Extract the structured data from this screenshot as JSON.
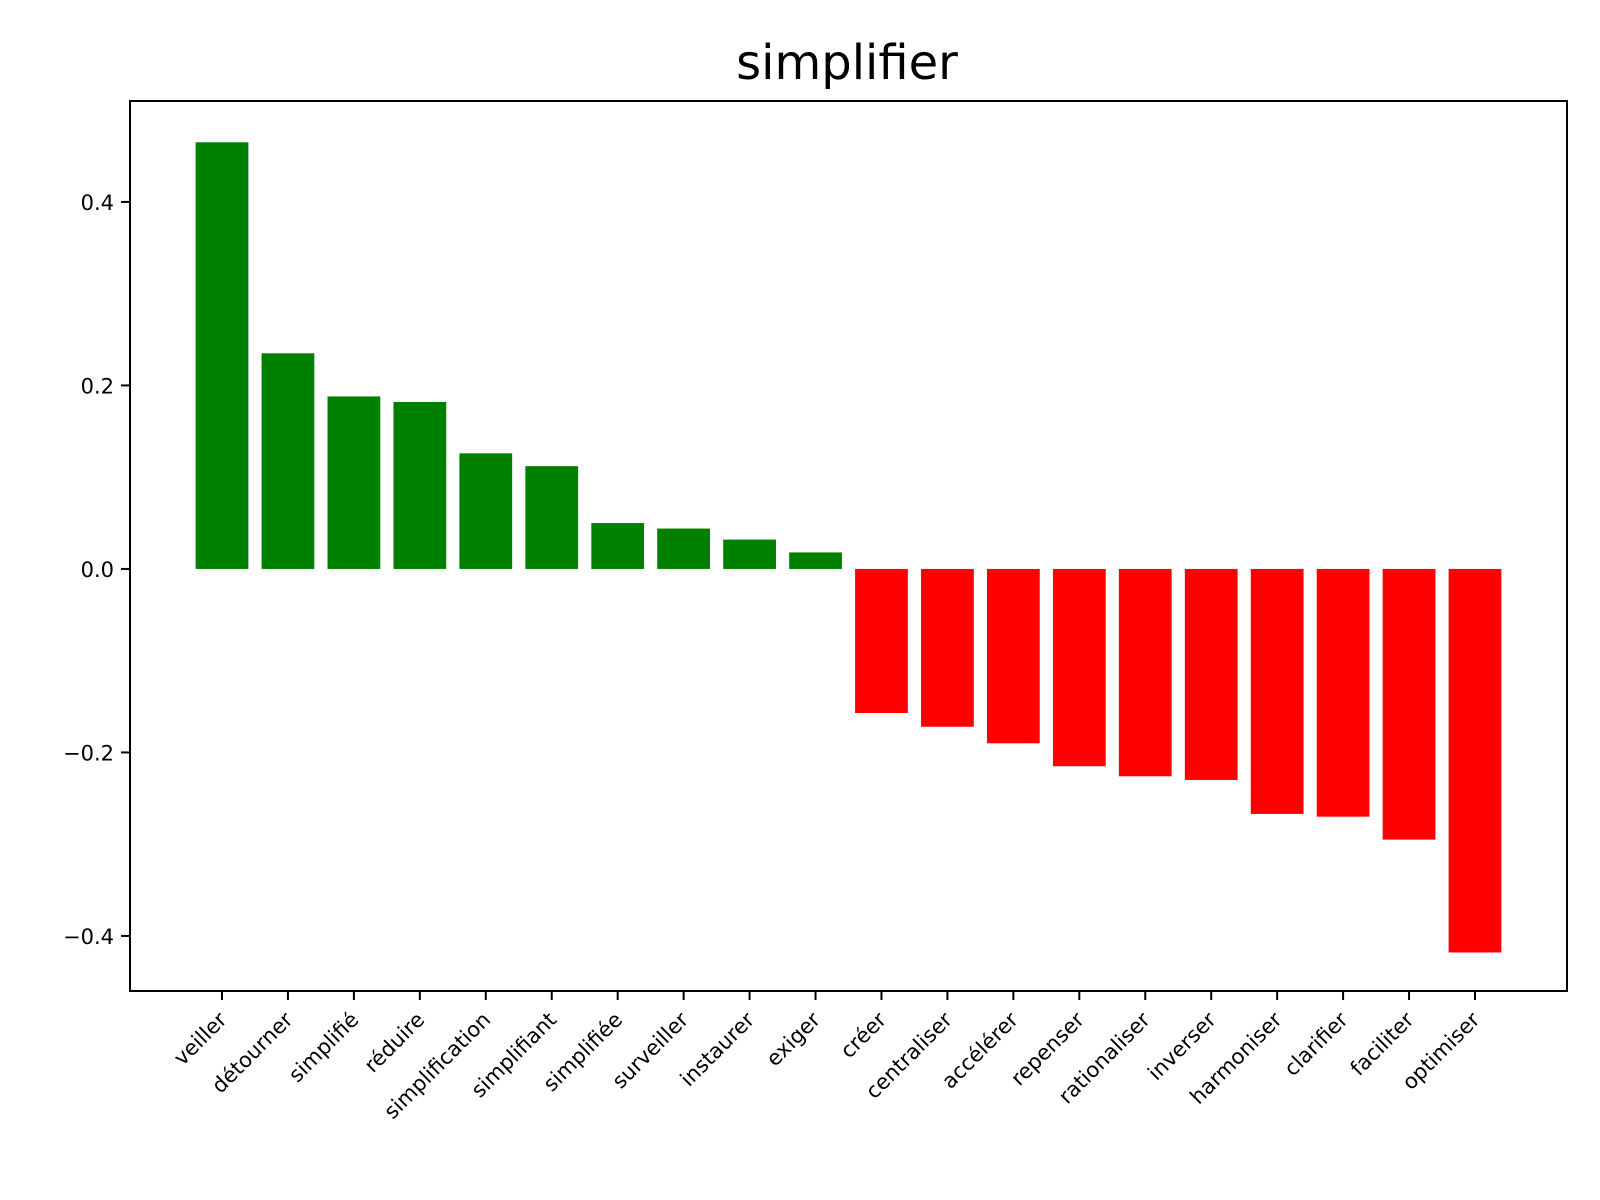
{
  "chart_data": {
    "type": "bar",
    "title": "simplifier",
    "xlabel": "",
    "ylabel": "",
    "categories": [
      "veiller",
      "détourner",
      "simplifié",
      "réduire",
      "simplification",
      "simplifiant",
      "simplifiée",
      "surveiller",
      "instaurer",
      "exiger",
      "créer",
      "centraliser",
      "accélérer",
      "repenser",
      "rationaliser",
      "inverser",
      "harmoniser",
      "clarifier",
      "faciliter",
      "optimiser"
    ],
    "values": [
      0.465,
      0.235,
      0.188,
      0.182,
      0.126,
      0.112,
      0.05,
      0.044,
      0.032,
      0.018,
      -0.157,
      -0.172,
      -0.19,
      -0.215,
      -0.226,
      -0.23,
      -0.267,
      -0.27,
      -0.295,
      -0.418
    ],
    "colors": {
      "positive": "#008000",
      "negative": "#ff0000"
    },
    "ylim": [
      -0.46,
      0.51
    ],
    "yticks": [
      {
        "value": 0.4,
        "label": "0.4"
      },
      {
        "value": 0.2,
        "label": "0.2"
      },
      {
        "value": 0.0,
        "label": "0.0"
      },
      {
        "value": -0.2,
        "label": "−0.2"
      },
      {
        "value": -0.4,
        "label": "−0.4"
      }
    ],
    "grid": false,
    "legend": "none",
    "xtick_rotation_deg": 45
  }
}
